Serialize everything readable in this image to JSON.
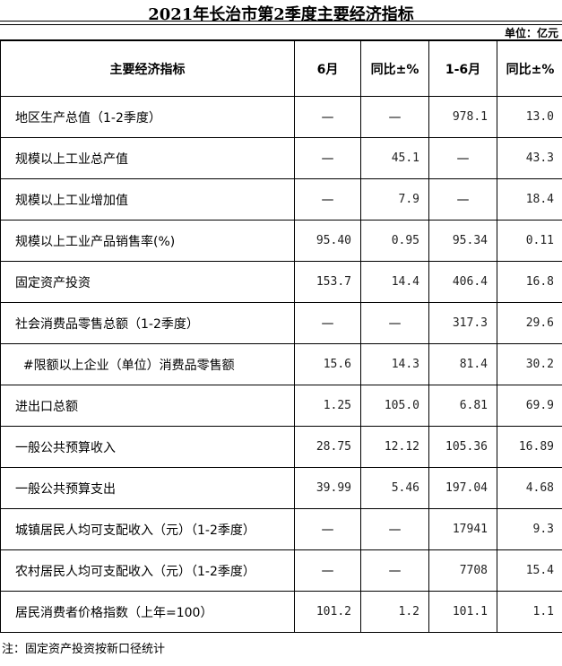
{
  "title": "2021年长治市第2季度主要经济指标",
  "unit": "单位：亿元",
  "headers": [
    "主要经济指标",
    "6月",
    "同比±%",
    "1-6月",
    "同比±%"
  ],
  "rows": [
    [
      "地区生产总值（1-2季度）",
      "—",
      "—",
      "978.1",
      "13.0"
    ],
    [
      "规模以上工业总产值",
      "—",
      "45.1",
      "—",
      "43.3"
    ],
    [
      "规模以上工业增加值",
      "—",
      "7.9",
      "—",
      "18.4"
    ],
    [
      "规模以上工业产品销售率(%)",
      "95.40",
      "0.95",
      "95.34",
      "0.11"
    ],
    [
      "固定资产投资",
      "153.7",
      "14.4",
      "406.4",
      "16.8"
    ],
    [
      "社会消费品零售总额（1-2季度）",
      "—",
      "—",
      "317.3",
      "29.6"
    ],
    [
      "  #限额以上企业（单位）消费品零售额",
      "15.6",
      "14.3",
      "81.4",
      "30.2"
    ],
    [
      "进出口总额",
      "1.25",
      "105.0",
      "6.81",
      "69.9"
    ],
    [
      "一般公共预算收入",
      "28.75",
      "12.12",
      "105.36",
      "16.89"
    ],
    [
      "一般公共预算支出",
      "39.99",
      "5.46",
      "197.04",
      "4.68"
    ],
    [
      "城镇居民人均可支配收入（元）（1-2季度）",
      "—",
      "—",
      "17941",
      "9.3"
    ],
    [
      "农村居民人均可支配收入（元）（1-2季度）",
      "—",
      "—",
      "7708",
      "15.4"
    ],
    [
      "居民消费者价格指数（上年=100）",
      "101.2",
      "1.2",
      "101.1",
      "1.1"
    ]
  ],
  "note": "注：固定资产投资按新口径统计"
}
